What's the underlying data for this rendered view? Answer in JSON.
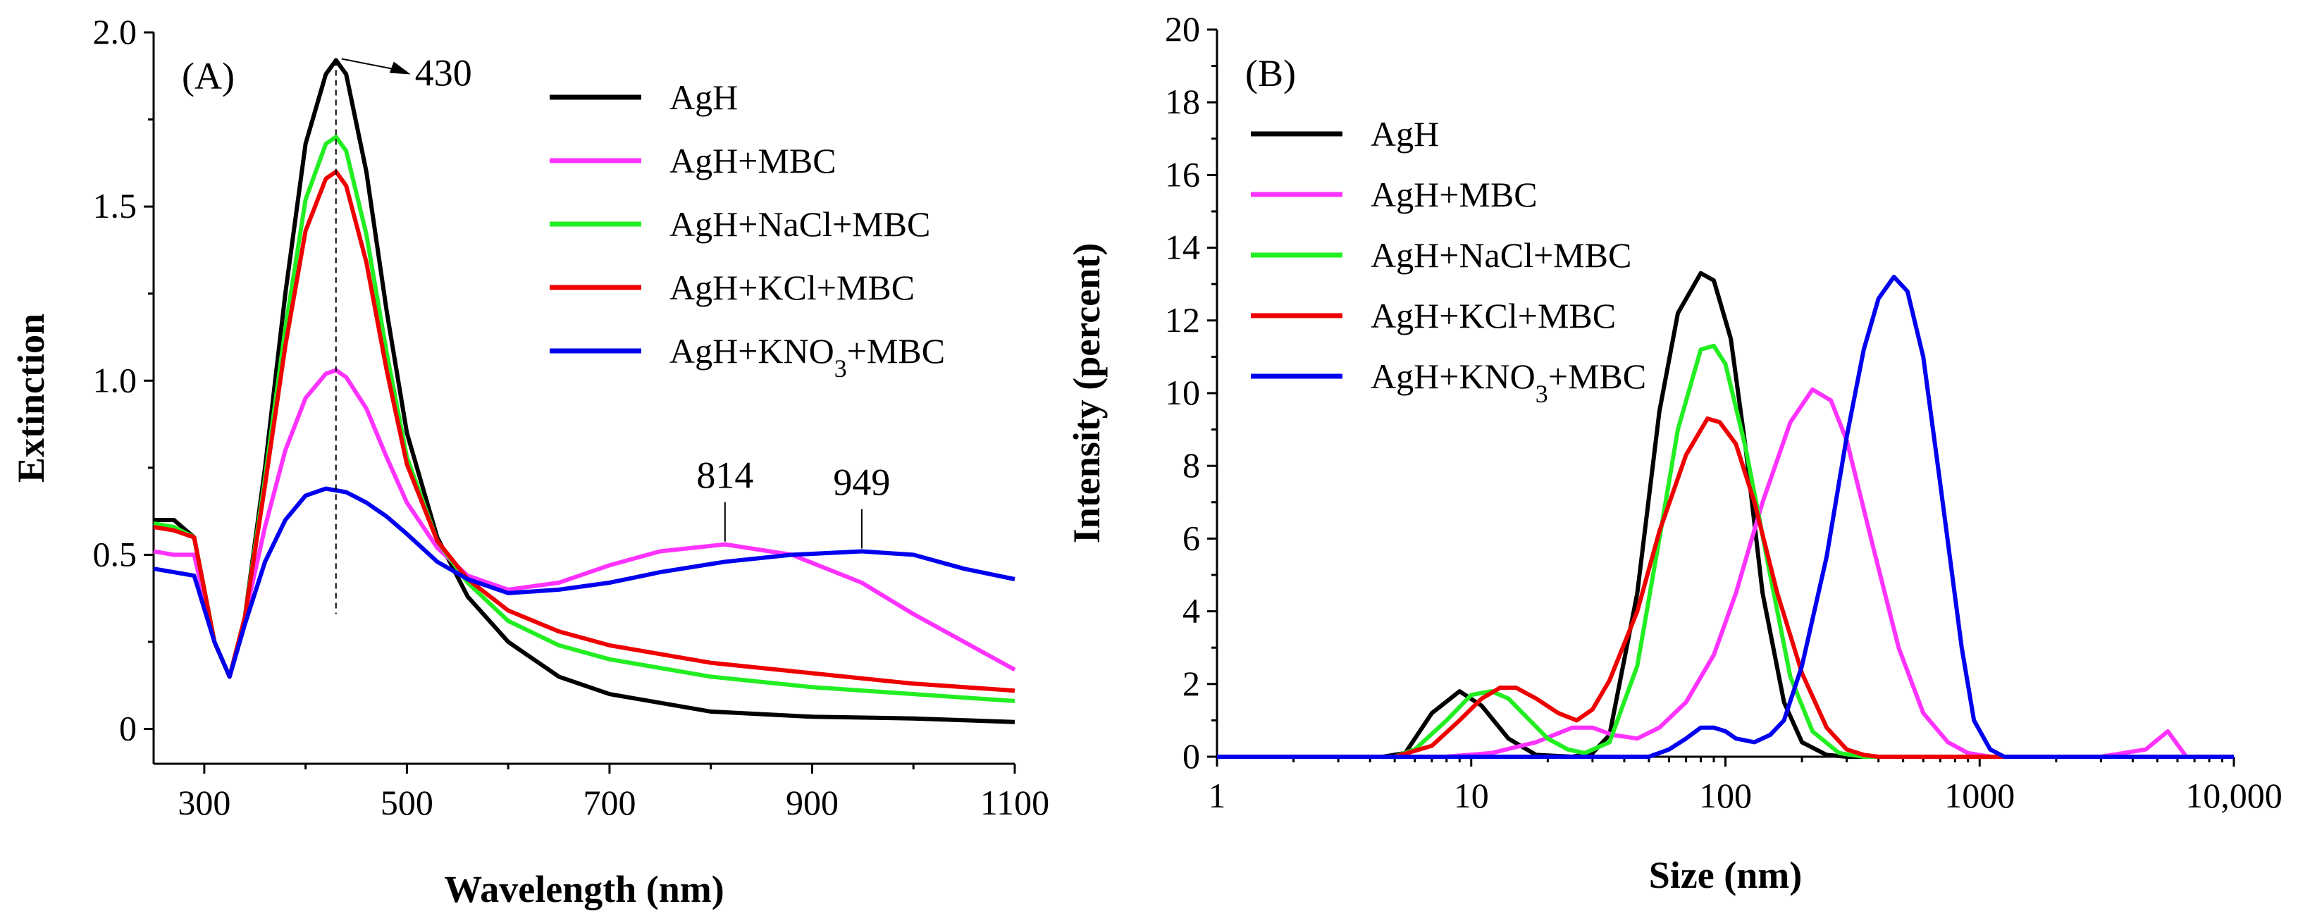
{
  "chart_data": [
    {
      "type": "line",
      "panel_label": "(A)",
      "xlabel": "Wavelength (nm)",
      "ylabel": "Extinction",
      "xlim": [
        250,
        1100
      ],
      "ylim": [
        -0.1,
        2.0
      ],
      "x_ticks": [
        300,
        500,
        700,
        900,
        1100
      ],
      "x_tick_labels": [
        "300",
        "500",
        "700",
        "900",
        "1100"
      ],
      "y_ticks": [
        0,
        0.5,
        1.0,
        1.5,
        2.0
      ],
      "y_tick_labels": [
        "0",
        "0.5",
        "1.0",
        "1.5",
        "2.0"
      ],
      "legend_position": "top-right",
      "annotations": [
        {
          "text": "430",
          "x": 430,
          "y": 1.92,
          "style": "arrow-dashed-line",
          "line_bottom": 0.33
        },
        {
          "text": "814",
          "x": 814,
          "y": 0.53,
          "style": "pointer"
        },
        {
          "text": "949",
          "x": 949,
          "y": 0.51,
          "style": "pointer"
        }
      ],
      "series": [
        {
          "name": "AgH",
          "color": "#000000",
          "x": [
            250,
            270,
            290,
            310,
            325,
            340,
            360,
            380,
            400,
            420,
            430,
            440,
            460,
            480,
            500,
            530,
            560,
            600,
            650,
            700,
            800,
            900,
            1000,
            1100
          ],
          "y": [
            0.6,
            0.6,
            0.55,
            0.25,
            0.15,
            0.32,
            0.75,
            1.25,
            1.68,
            1.88,
            1.92,
            1.88,
            1.6,
            1.2,
            0.85,
            0.55,
            0.38,
            0.25,
            0.15,
            0.1,
            0.05,
            0.035,
            0.03,
            0.02
          ]
        },
        {
          "name": "AgH+MBC",
          "color": "#ff33ff",
          "x": [
            250,
            270,
            290,
            310,
            325,
            340,
            360,
            380,
            400,
            420,
            430,
            440,
            460,
            480,
            500,
            530,
            560,
            600,
            650,
            700,
            750,
            814,
            880,
            949,
            1000,
            1050,
            1100
          ],
          "y": [
            0.51,
            0.5,
            0.5,
            0.25,
            0.15,
            0.32,
            0.58,
            0.8,
            0.95,
            1.02,
            1.03,
            1.01,
            0.92,
            0.78,
            0.65,
            0.52,
            0.44,
            0.4,
            0.42,
            0.47,
            0.51,
            0.53,
            0.5,
            0.42,
            0.33,
            0.25,
            0.17
          ]
        },
        {
          "name": "AgH+NaCl+MBC",
          "color": "#22ee22",
          "x": [
            250,
            270,
            290,
            310,
            325,
            340,
            360,
            380,
            400,
            420,
            430,
            440,
            460,
            480,
            500,
            530,
            560,
            600,
            650,
            700,
            800,
            900,
            1000,
            1100
          ],
          "y": [
            0.59,
            0.58,
            0.55,
            0.25,
            0.15,
            0.32,
            0.72,
            1.15,
            1.52,
            1.68,
            1.7,
            1.66,
            1.42,
            1.08,
            0.78,
            0.54,
            0.42,
            0.31,
            0.24,
            0.2,
            0.15,
            0.12,
            0.1,
            0.08
          ]
        },
        {
          "name": "AgH+KCl+MBC",
          "color": "#ee0000",
          "x": [
            250,
            270,
            290,
            310,
            325,
            340,
            360,
            380,
            400,
            420,
            430,
            440,
            460,
            480,
            500,
            530,
            560,
            600,
            650,
            700,
            800,
            900,
            1000,
            1100
          ],
          "y": [
            0.58,
            0.57,
            0.55,
            0.25,
            0.15,
            0.32,
            0.7,
            1.1,
            1.43,
            1.58,
            1.6,
            1.56,
            1.34,
            1.03,
            0.76,
            0.54,
            0.43,
            0.34,
            0.28,
            0.24,
            0.19,
            0.16,
            0.13,
            0.11
          ]
        },
        {
          "name": "AgH+KNO3+MBC",
          "color": "#0000ee",
          "x": [
            250,
            270,
            290,
            310,
            325,
            340,
            360,
            380,
            400,
            420,
            440,
            460,
            480,
            500,
            530,
            560,
            600,
            650,
            700,
            750,
            814,
            880,
            949,
            1000,
            1050,
            1100
          ],
          "y": [
            0.46,
            0.45,
            0.44,
            0.25,
            0.15,
            0.3,
            0.48,
            0.6,
            0.67,
            0.69,
            0.68,
            0.65,
            0.61,
            0.56,
            0.48,
            0.43,
            0.39,
            0.4,
            0.42,
            0.45,
            0.48,
            0.5,
            0.51,
            0.5,
            0.46,
            0.43
          ]
        }
      ]
    },
    {
      "type": "line",
      "panel_label": "(B)",
      "xlabel": "Size (nm)",
      "ylabel": "Intensity (percent)",
      "x_scale": "log",
      "xlim": [
        1,
        10000
      ],
      "ylim": [
        0,
        20
      ],
      "x_ticks": [
        1,
        10,
        100,
        1000,
        10000
      ],
      "x_tick_labels": [
        "1",
        "10",
        "100",
        "1000",
        "10,000"
      ],
      "y_ticks": [
        0,
        2,
        4,
        6,
        8,
        10,
        12,
        14,
        16,
        18,
        20
      ],
      "y_tick_labels": [
        "0",
        "2",
        "4",
        "6",
        "8",
        "10",
        "12",
        "14",
        "16",
        "18",
        "20"
      ],
      "legend_position": "top-left",
      "series": [
        {
          "name": "AgH",
          "color": "#000000",
          "x": [
            1,
            4.5,
            5.5,
            7,
            9,
            11,
            14,
            18,
            25,
            30,
            35,
            45,
            55,
            65,
            80,
            90,
            105,
            120,
            140,
            170,
            200,
            250,
            300,
            10000
          ],
          "y": [
            0,
            0,
            0.1,
            1.2,
            1.8,
            1.4,
            0.5,
            0.05,
            0,
            0.1,
            0.6,
            4.5,
            9.5,
            12.2,
            13.3,
            13.1,
            11.5,
            8.5,
            4.5,
            1.5,
            0.4,
            0.05,
            0,
            0
          ]
        },
        {
          "name": "AgH+MBC",
          "color": "#ff33ff",
          "x": [
            1,
            8,
            12,
            18,
            25,
            30,
            36,
            45,
            55,
            70,
            90,
            110,
            140,
            180,
            220,
            260,
            300,
            380,
            480,
            600,
            750,
            900,
            1100,
            3000,
            4500,
            5500,
            6500,
            10000
          ],
          "y": [
            0,
            0,
            0.1,
            0.4,
            0.8,
            0.8,
            0.6,
            0.5,
            0.8,
            1.5,
            2.8,
            4.5,
            7.0,
            9.2,
            10.1,
            9.8,
            8.7,
            5.8,
            3.0,
            1.2,
            0.4,
            0.1,
            0,
            0,
            0.2,
            0.7,
            0,
            0
          ]
        },
        {
          "name": "AgH+NaCl+MBC",
          "color": "#22ee22",
          "x": [
            1,
            5,
            6,
            8,
            10,
            12,
            14,
            17,
            20,
            24,
            28,
            35,
            45,
            55,
            65,
            80,
            90,
            100,
            120,
            150,
            180,
            220,
            280,
            350,
            10000
          ],
          "y": [
            0,
            0,
            0.2,
            1.0,
            1.7,
            1.8,
            1.6,
            1.0,
            0.5,
            0.2,
            0.1,
            0.4,
            2.5,
            6.0,
            9.0,
            11.2,
            11.3,
            10.8,
            8.5,
            5.0,
            2.2,
            0.7,
            0.1,
            0,
            0
          ]
        },
        {
          "name": "AgH+KCl+MBC",
          "color": "#ee0000",
          "x": [
            1,
            5,
            7,
            9,
            11,
            13,
            15,
            18,
            22,
            26,
            30,
            35,
            45,
            55,
            70,
            85,
            95,
            110,
            130,
            160,
            200,
            250,
            300,
            350,
            400,
            10000
          ],
          "y": [
            0,
            0,
            0.3,
            1.0,
            1.6,
            1.9,
            1.9,
            1.6,
            1.2,
            1.0,
            1.3,
            2.1,
            4.0,
            6.2,
            8.3,
            9.3,
            9.2,
            8.6,
            7.0,
            4.5,
            2.3,
            0.8,
            0.2,
            0.05,
            0,
            0
          ]
        },
        {
          "name": "AgH+KNO3+MBC",
          "color": "#0000ee",
          "x": [
            1,
            50,
            60,
            70,
            80,
            90,
            100,
            110,
            130,
            150,
            170,
            200,
            250,
            300,
            350,
            400,
            460,
            520,
            600,
            700,
            850,
            950,
            1100,
            1250,
            1400,
            10000
          ],
          "y": [
            0,
            0,
            0.2,
            0.5,
            0.8,
            0.8,
            0.7,
            0.5,
            0.4,
            0.6,
            1.0,
            2.5,
            5.5,
            8.8,
            11.2,
            12.6,
            13.2,
            12.8,
            11.0,
            7.5,
            3.0,
            1.0,
            0.2,
            0,
            0,
            0
          ]
        }
      ]
    }
  ]
}
